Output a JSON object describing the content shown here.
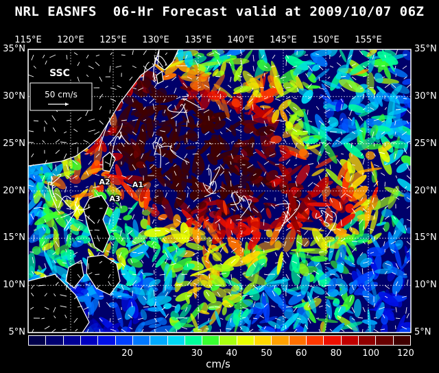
{
  "title": "NRL EASNFS  06-Hr Forecast valid at 2009/10/07 06Z",
  "lon_labels": [
    "115°E",
    "120°E",
    "125°E",
    "130°E",
    "135°E",
    "140°E",
    "145°E",
    "150°E",
    "155°E"
  ],
  "lat_labels": [
    "35°N",
    "30°N",
    "25°N",
    "20°N",
    "15°N",
    "10°N",
    "5°N"
  ],
  "lon_values": [
    115,
    120,
    125,
    130,
    135,
    140,
    145,
    150,
    155
  ],
  "lat_values": [
    35,
    30,
    25,
    20,
    15,
    10,
    5
  ],
  "extent": {
    "lon": [
      115,
      160
    ],
    "lat": [
      5,
      35
    ]
  },
  "field_label": "SSC",
  "scale_vector_label": "50 cm/s",
  "annotations": [
    {
      "text": "A2",
      "lon": 124.0,
      "lat": 20.7
    },
    {
      "text": "A1",
      "lon": 127.9,
      "lat": 20.4
    },
    {
      "text": "A3",
      "lon": 125.2,
      "lat": 18.9
    }
  ],
  "legend": {
    "colors": [
      "#00004a",
      "#000070",
      "#000096",
      "#0000c0",
      "#0010e6",
      "#0040ff",
      "#0078ff",
      "#00aaff",
      "#00d8f4",
      "#00ff9a",
      "#38ff30",
      "#a8ff10",
      "#e8ff00",
      "#ffd800",
      "#ffa000",
      "#ff7000",
      "#ff3800",
      "#ee1000",
      "#c00000",
      "#900000",
      "#680000",
      "#400000"
    ],
    "ticks": [
      {
        "label": "20",
        "pos": 5.7
      },
      {
        "label": "30",
        "pos": 9.7
      },
      {
        "label": "40",
        "pos": 11.7
      },
      {
        "label": "50",
        "pos": 13.7
      },
      {
        "label": "60",
        "pos": 15.7
      },
      {
        "label": "80",
        "pos": 17.7
      },
      {
        "label": "100",
        "pos": 19.7
      },
      {
        "label": "120",
        "pos": 21.7
      }
    ],
    "unit": "cm/s"
  }
}
